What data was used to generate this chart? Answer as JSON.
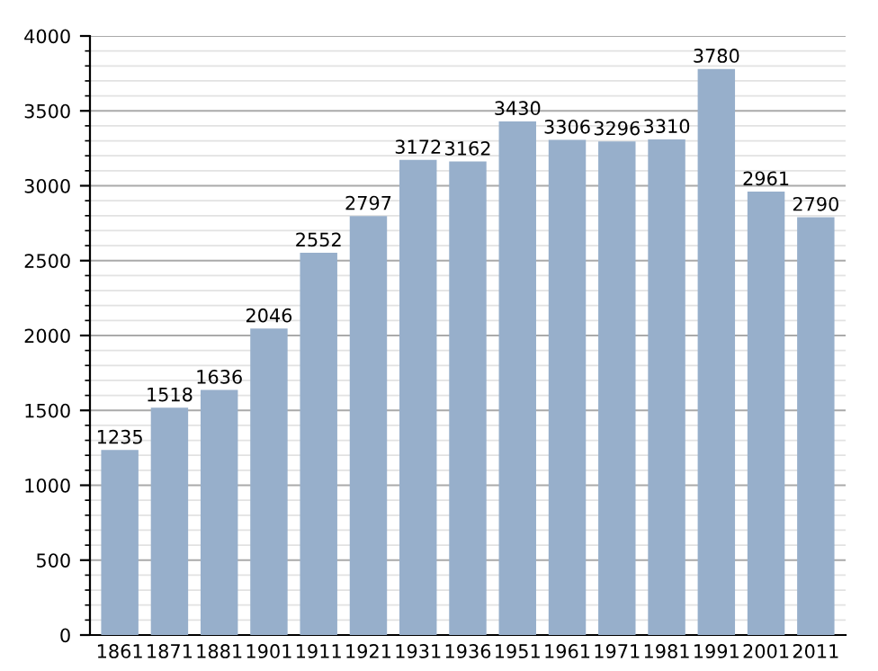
{
  "chart_data": {
    "type": "bar",
    "categories": [
      "1861",
      "1871",
      "1881",
      "1901",
      "1911",
      "1921",
      "1931",
      "1936",
      "1951",
      "1961",
      "1971",
      "1981",
      "1991",
      "2001",
      "2011"
    ],
    "values": [
      1235,
      1518,
      1636,
      2046,
      2552,
      2797,
      3172,
      3162,
      3430,
      3306,
      3296,
      3310,
      3780,
      2961,
      2790
    ],
    "color": "#97afcb",
    "ylim": [
      0,
      4000
    ],
    "yticks": [
      0,
      500,
      1000,
      1500,
      2000,
      2500,
      3000,
      3500,
      4000
    ],
    "grid": "y",
    "data_labels": true
  }
}
